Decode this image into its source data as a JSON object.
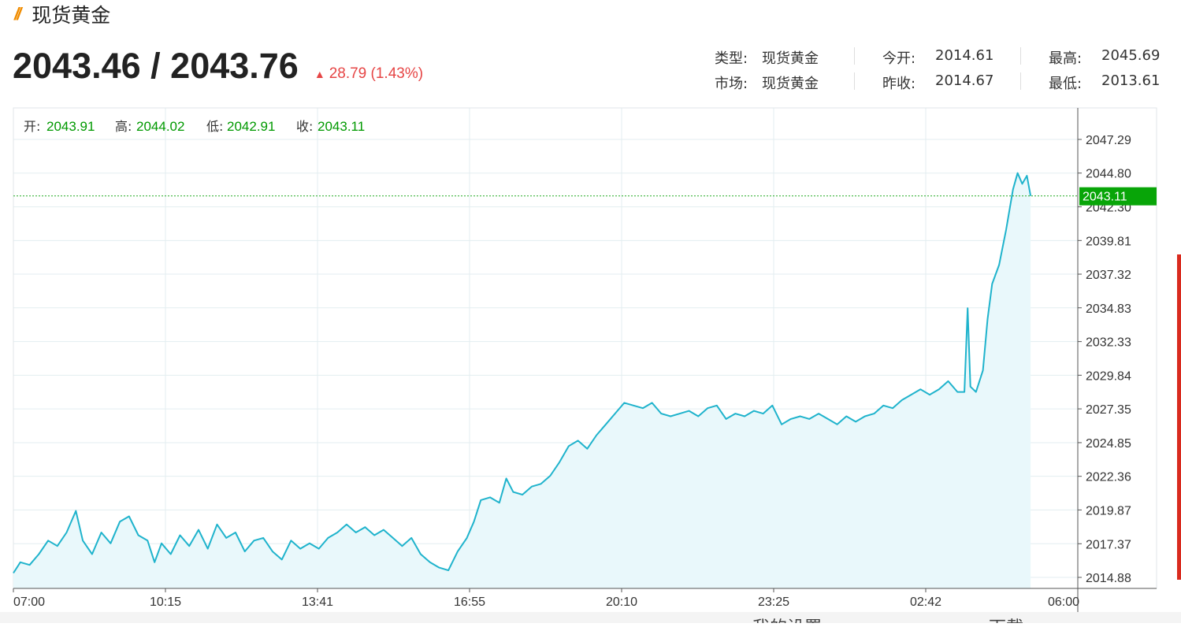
{
  "header": {
    "title": "现货黄金",
    "price": "2043.46 / 2043.76",
    "change": "28.79 (1.43%)"
  },
  "info": {
    "type_label": "类型:",
    "type_value": "现货黄金",
    "market_label": "市场:",
    "market_value": "现货黄金",
    "open_label": "今开:",
    "open_value": "2014.61",
    "prev_close_label": "昨收:",
    "prev_close_value": "2014.67",
    "high_label": "最高:",
    "high_value": "2045.69",
    "low_label": "最低:",
    "low_value": "2013.61"
  },
  "ohlc": {
    "open_label": "开:",
    "open_value": "2043.91",
    "high_label": "高:",
    "high_value": "2044.02",
    "low_label": "低:",
    "low_value": "2042.91",
    "close_label": "收:",
    "close_value": "2043.11"
  },
  "colors": {
    "line": "#1fb3cc",
    "area": "#e9f8fb",
    "up": "#e64545",
    "ohlc_value": "#009900",
    "current_tag": "#08a508",
    "grid": "#e3eef0"
  },
  "bottom_strip": {
    "text1": "我的设置",
    "text2": "下载"
  },
  "chart_data": {
    "type": "line",
    "title": "",
    "xlabel": "",
    "ylabel": "",
    "x_ticks": [
      "07:00",
      "10:15",
      "13:41",
      "16:55",
      "20:10",
      "23:25",
      "02:42",
      "06:00"
    ],
    "y_ticks": [
      "2047.29",
      "2044.80",
      "2042.30",
      "2039.81",
      "2037.32",
      "2034.83",
      "2032.33",
      "2029.84",
      "2027.35",
      "2024.85",
      "2022.36",
      "2019.87",
      "2017.37",
      "2014.88"
    ],
    "ylim": [
      2014.0,
      2048.0
    ],
    "current_value": "2043.11",
    "x_unit": "hours after 07:00",
    "series": [
      {
        "values_hours_prices": [
          [
            0.0,
            2015.2
          ],
          [
            0.15,
            2016.0
          ],
          [
            0.35,
            2015.8
          ],
          [
            0.55,
            2016.6
          ],
          [
            0.75,
            2017.6
          ],
          [
            0.95,
            2017.2
          ],
          [
            1.15,
            2018.2
          ],
          [
            1.35,
            2019.8
          ],
          [
            1.5,
            2017.6
          ],
          [
            1.7,
            2016.6
          ],
          [
            1.9,
            2018.2
          ],
          [
            2.1,
            2017.4
          ],
          [
            2.3,
            2019.0
          ],
          [
            2.5,
            2019.4
          ],
          [
            2.7,
            2018.0
          ],
          [
            2.9,
            2017.6
          ],
          [
            3.05,
            2016.0
          ],
          [
            3.2,
            2017.4
          ],
          [
            3.4,
            2016.6
          ],
          [
            3.6,
            2018.0
          ],
          [
            3.8,
            2017.2
          ],
          [
            4.0,
            2018.4
          ],
          [
            4.2,
            2017.0
          ],
          [
            4.4,
            2018.8
          ],
          [
            4.6,
            2017.8
          ],
          [
            4.8,
            2018.2
          ],
          [
            5.0,
            2016.8
          ],
          [
            5.2,
            2017.6
          ],
          [
            5.4,
            2017.8
          ],
          [
            5.6,
            2016.8
          ],
          [
            5.8,
            2016.2
          ],
          [
            6.0,
            2017.6
          ],
          [
            6.2,
            2017.0
          ],
          [
            6.4,
            2017.4
          ],
          [
            6.6,
            2017.0
          ],
          [
            6.8,
            2017.8
          ],
          [
            7.0,
            2018.2
          ],
          [
            7.2,
            2018.8
          ],
          [
            7.4,
            2018.2
          ],
          [
            7.6,
            2018.6
          ],
          [
            7.8,
            2018.0
          ],
          [
            8.0,
            2018.4
          ],
          [
            8.2,
            2017.8
          ],
          [
            8.4,
            2017.2
          ],
          [
            8.6,
            2017.8
          ],
          [
            8.8,
            2016.6
          ],
          [
            9.0,
            2016.0
          ],
          [
            9.2,
            2015.6
          ],
          [
            9.4,
            2015.4
          ],
          [
            9.6,
            2016.8
          ],
          [
            9.8,
            2017.8
          ],
          [
            9.95,
            2019.0
          ],
          [
            10.1,
            2020.6
          ],
          [
            10.3,
            2020.8
          ],
          [
            10.5,
            2020.4
          ],
          [
            10.65,
            2022.2
          ],
          [
            10.8,
            2021.2
          ],
          [
            11.0,
            2021.0
          ],
          [
            11.2,
            2021.6
          ],
          [
            11.4,
            2021.8
          ],
          [
            11.6,
            2022.4
          ],
          [
            11.8,
            2023.4
          ],
          [
            12.0,
            2024.6
          ],
          [
            12.2,
            2025.0
          ],
          [
            12.4,
            2024.4
          ],
          [
            12.6,
            2025.4
          ],
          [
            12.8,
            2026.2
          ],
          [
            13.0,
            2027.0
          ],
          [
            13.2,
            2027.8
          ],
          [
            13.4,
            2027.6
          ],
          [
            13.6,
            2027.4
          ],
          [
            13.8,
            2027.8
          ],
          [
            14.0,
            2027.0
          ],
          [
            14.2,
            2026.8
          ],
          [
            14.4,
            2027.0
          ],
          [
            14.6,
            2027.2
          ],
          [
            14.8,
            2026.8
          ],
          [
            15.0,
            2027.4
          ],
          [
            15.2,
            2027.6
          ],
          [
            15.4,
            2026.6
          ],
          [
            15.6,
            2027.0
          ],
          [
            15.8,
            2026.8
          ],
          [
            16.0,
            2027.2
          ],
          [
            16.2,
            2027.0
          ],
          [
            16.4,
            2027.6
          ],
          [
            16.6,
            2026.2
          ],
          [
            16.8,
            2026.6
          ],
          [
            17.0,
            2026.8
          ],
          [
            17.2,
            2026.6
          ],
          [
            17.4,
            2027.0
          ],
          [
            17.6,
            2026.6
          ],
          [
            17.8,
            2026.2
          ],
          [
            18.0,
            2026.8
          ],
          [
            18.2,
            2026.4
          ],
          [
            18.4,
            2026.8
          ],
          [
            18.6,
            2027.0
          ],
          [
            18.8,
            2027.6
          ],
          [
            19.0,
            2027.4
          ],
          [
            19.2,
            2028.0
          ],
          [
            19.4,
            2028.4
          ],
          [
            19.6,
            2028.8
          ],
          [
            19.8,
            2028.4
          ],
          [
            20.0,
            2028.8
          ],
          [
            20.2,
            2029.4
          ],
          [
            20.4,
            2028.6
          ],
          [
            20.55,
            2028.6
          ],
          [
            20.62,
            2034.8
          ],
          [
            20.68,
            2029.0
          ],
          [
            20.8,
            2028.6
          ],
          [
            20.95,
            2030.2
          ],
          [
            21.05,
            2034.0
          ],
          [
            21.15,
            2036.6
          ],
          [
            21.3,
            2038.0
          ],
          [
            21.45,
            2040.6
          ],
          [
            21.6,
            2043.6
          ],
          [
            21.7,
            2044.8
          ],
          [
            21.8,
            2044.0
          ],
          [
            21.9,
            2044.6
          ],
          [
            21.98,
            2043.11
          ]
        ]
      }
    ],
    "grid": true
  }
}
